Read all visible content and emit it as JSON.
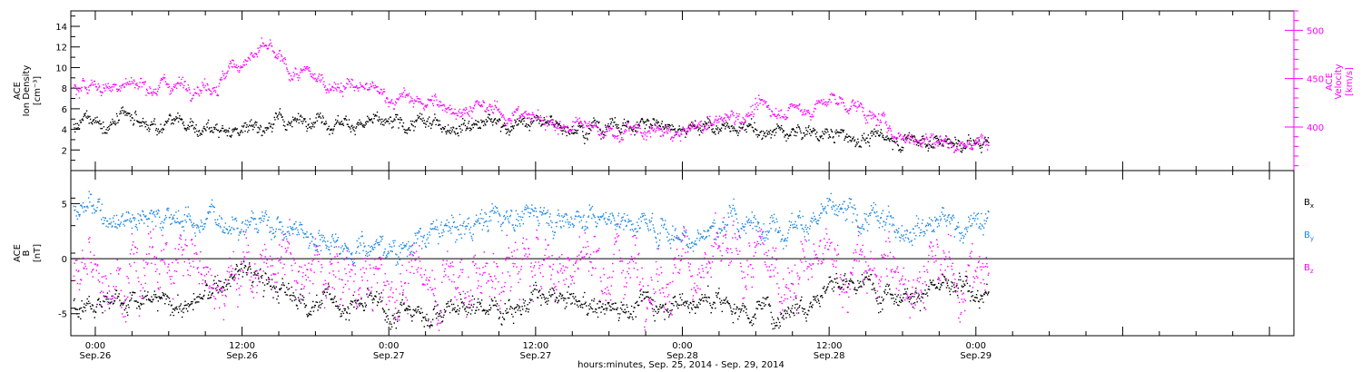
{
  "chart_data": {
    "type": "scatter",
    "xlabel": "hours:minutes, Sep. 25, 2014 - Sep. 29, 2014",
    "x_range_hours": [
      -2,
      98
    ],
    "x_ticks": [
      {
        "h": 0,
        "time": "0:00",
        "date": "Sep.26"
      },
      {
        "h": 12,
        "time": "12:00",
        "date": "Sep.26"
      },
      {
        "h": 24,
        "time": "0:00",
        "date": "Sep.27"
      },
      {
        "h": 36,
        "time": "12:00",
        "date": "Sep.27"
      },
      {
        "h": 48,
        "time": "0:00",
        "date": "Sep.28"
      },
      {
        "h": 60,
        "time": "12:00",
        "date": "Sep.28"
      },
      {
        "h": 72,
        "time": "0:00",
        "date": "Sep.29"
      }
    ],
    "panels": [
      {
        "id": "density-velocity",
        "left_axis": {
          "label_lines": [
            "ACE",
            "Ion Density",
            "[cm⁻³]"
          ],
          "ylim": [
            0,
            15.5
          ],
          "ticks": [
            2,
            4,
            6,
            8,
            10,
            12,
            14
          ],
          "color": "#000000"
        },
        "right_axis": {
          "label_lines": [
            "ACE",
            "Velocity",
            "[km/s]"
          ],
          "ylim": [
            355,
            520
          ],
          "ticks": [
            400,
            450,
            500
          ],
          "color": "#ff00ff"
        },
        "series": [
          {
            "name": "Ion Density",
            "axis": "left",
            "color": "#000000",
            "trend": [
              [
                -2,
                4.2
              ],
              [
                0,
                4.6
              ],
              [
                6,
                4.5
              ],
              [
                10,
                4.0
              ],
              [
                14,
                4.5
              ],
              [
                18,
                5.2
              ],
              [
                24,
                4.3
              ],
              [
                30,
                4.8
              ],
              [
                36,
                4.6
              ],
              [
                42,
                4.4
              ],
              [
                48,
                4.6
              ],
              [
                54,
                3.8
              ],
              [
                58,
                3.8
              ],
              [
                62,
                3.2
              ],
              [
                66,
                3.1
              ],
              [
                70,
                2.9
              ],
              [
                72,
                2.6
              ]
            ],
            "noise": 0.8
          },
          {
            "name": "Velocity",
            "axis": "right",
            "color": "#ff00ff",
            "trend": [
              [
                -2,
                440
              ],
              [
                0,
                443
              ],
              [
                6,
                445
              ],
              [
                10,
                447
              ],
              [
                12,
                470
              ],
              [
                14,
                480
              ],
              [
                16,
                455
              ],
              [
                20,
                445
              ],
              [
                24,
                432
              ],
              [
                28,
                423
              ],
              [
                32,
                418
              ],
              [
                36,
                410
              ],
              [
                40,
                398
              ],
              [
                44,
                395
              ],
              [
                48,
                393
              ],
              [
                52,
                412
              ],
              [
                55,
                420
              ],
              [
                58,
                418
              ],
              [
                60,
                428
              ],
              [
                62,
                424
              ],
              [
                64,
                405
              ],
              [
                66,
                392
              ],
              [
                68,
                388
              ],
              [
                72,
                383
              ]
            ],
            "noise": 9
          }
        ]
      },
      {
        "id": "magnetic-field",
        "left_axis": {
          "label_lines": [
            "ACE",
            "B",
            "[nT]"
          ],
          "ylim": [
            -7,
            8
          ],
          "ticks": [
            -5,
            0,
            5
          ],
          "zero_line": true,
          "color": "#000000"
        },
        "legend": [
          {
            "label": "B",
            "sub": "x",
            "color": "#000000"
          },
          {
            "label": "B",
            "sub": "y",
            "color": "#1a86e0"
          },
          {
            "label": "B",
            "sub": "z",
            "color": "#ff00ff"
          }
        ],
        "series": [
          {
            "name": "Bx",
            "color": "#000000",
            "trend": [
              [
                -2,
                -3
              ],
              [
                4,
                -4
              ],
              [
                8,
                -4.2
              ],
              [
                12,
                -1
              ],
              [
                16,
                -3.5
              ],
              [
                22,
                -4.2
              ],
              [
                26,
                -4.8
              ],
              [
                30,
                -4.5
              ],
              [
                36,
                -3.8
              ],
              [
                42,
                -4.3
              ],
              [
                48,
                -3.6
              ],
              [
                52,
                -4.2
              ],
              [
                56,
                -4.8
              ],
              [
                60,
                -2.2
              ],
              [
                64,
                -2.6
              ],
              [
                68,
                -2.8
              ],
              [
                72,
                -3
              ]
            ],
            "noise": 1.2
          },
          {
            "name": "By",
            "color": "#1a86e0",
            "trend": [
              [
                -2,
                4.5
              ],
              [
                4,
                4
              ],
              [
                8,
                3.5
              ],
              [
                12,
                3.7
              ],
              [
                16,
                2.8
              ],
              [
                20,
                1.6
              ],
              [
                24,
                1
              ],
              [
                28,
                2.2
              ],
              [
                32,
                3.8
              ],
              [
                36,
                4.2
              ],
              [
                40,
                3.9
              ],
              [
                44,
                3.6
              ],
              [
                48,
                2.2
              ],
              [
                52,
                3.2
              ],
              [
                56,
                3.3
              ],
              [
                60,
                3.9
              ],
              [
                64,
                3.3
              ],
              [
                68,
                3.5
              ],
              [
                72,
                3.3
              ]
            ],
            "noise": 1.3
          },
          {
            "name": "Bz",
            "color": "#ff00ff",
            "trend": [
              [
                -2,
                -1
              ],
              [
                6,
                0
              ],
              [
                12,
                -1
              ],
              [
                18,
                -1
              ],
              [
                24,
                -2.5
              ],
              [
                30,
                -1.5
              ],
              [
                36,
                -0.5
              ],
              [
                42,
                0
              ],
              [
                48,
                -0.5
              ],
              [
                54,
                -1
              ],
              [
                60,
                -0.8
              ],
              [
                66,
                -1.2
              ],
              [
                72,
                -1.5
              ]
            ],
            "noise": 3.0
          }
        ]
      }
    ]
  }
}
